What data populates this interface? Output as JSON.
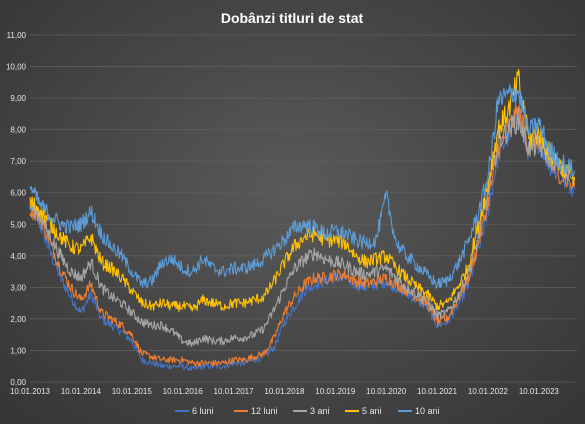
{
  "chart_data": {
    "type": "line",
    "title": "Dobânzi titluri de stat",
    "xlabel": "",
    "ylabel": "",
    "ylim": [
      0,
      11
    ],
    "yticks": [
      "0,00",
      "1,00",
      "2,00",
      "3,00",
      "4,00",
      "5,00",
      "6,00",
      "7,00",
      "8,00",
      "9,00",
      "10,00",
      "11,00"
    ],
    "xticks": [
      "10.01.2013",
      "10.01.2014",
      "10.01.2015",
      "10.01.2016",
      "10.01.2017",
      "10.01.2018",
      "10.01.2019",
      "10.01.2020",
      "10.01.2021",
      "10.01.2022",
      "10.01.2023"
    ],
    "xlim": [
      2013.0,
      2023.75
    ],
    "grid": true,
    "legend": "bottom",
    "colors": {
      "background": "#404040",
      "grid": "#5e5e5e",
      "text": "#e6e6e6"
    },
    "series": [
      {
        "name": "6 luni",
        "color": "#4472c4",
        "x": [
          2013.0,
          2013.2,
          2013.4,
          2013.6,
          2013.8,
          2014.0,
          2014.2,
          2014.4,
          2014.6,
          2014.8,
          2015.0,
          2015.2,
          2015.4,
          2015.6,
          2015.8,
          2016.0,
          2016.2,
          2016.4,
          2016.6,
          2016.8,
          2017.0,
          2017.2,
          2017.4,
          2017.6,
          2017.8,
          2018.0,
          2018.2,
          2018.4,
          2018.6,
          2018.8,
          2019.0,
          2019.2,
          2019.4,
          2019.6,
          2019.8,
          2020.0,
          2020.2,
          2020.4,
          2020.6,
          2020.8,
          2021.0,
          2021.2,
          2021.4,
          2021.6,
          2021.8,
          2022.0,
          2022.2,
          2022.4,
          2022.6,
          2022.8,
          2023.0,
          2023.2,
          2023.4,
          2023.7
        ],
        "values": [
          5.6,
          5.0,
          4.1,
          3.3,
          2.7,
          2.2,
          2.8,
          2.0,
          1.8,
          1.6,
          1.3,
          0.7,
          0.6,
          0.5,
          0.5,
          0.5,
          0.4,
          0.5,
          0.5,
          0.5,
          0.6,
          0.6,
          0.7,
          0.8,
          1.1,
          1.9,
          2.4,
          2.9,
          3.1,
          3.2,
          3.3,
          3.3,
          3.1,
          3.0,
          3.1,
          3.2,
          3.0,
          2.8,
          2.6,
          2.4,
          1.8,
          1.9,
          2.4,
          3.0,
          4.1,
          5.4,
          7.2,
          7.8,
          8.4,
          7.3,
          7.6,
          6.9,
          6.5,
          6.1
        ]
      },
      {
        "name": "12 luni",
        "color": "#ed7d31",
        "x": [
          2013.0,
          2013.2,
          2013.4,
          2013.6,
          2013.8,
          2014.0,
          2014.2,
          2014.4,
          2014.6,
          2014.8,
          2015.0,
          2015.2,
          2015.4,
          2015.6,
          2015.8,
          2016.0,
          2016.2,
          2016.4,
          2016.6,
          2016.8,
          2017.0,
          2017.2,
          2017.4,
          2017.6,
          2017.8,
          2018.0,
          2018.2,
          2018.4,
          2018.6,
          2018.8,
          2019.0,
          2019.2,
          2019.4,
          2019.6,
          2019.8,
          2020.0,
          2020.2,
          2020.4,
          2020.6,
          2020.8,
          2021.0,
          2021.2,
          2021.4,
          2021.6,
          2021.8,
          2022.0,
          2022.2,
          2022.4,
          2022.6,
          2022.8,
          2023.0,
          2023.2,
          2023.4,
          2023.7
        ],
        "values": [
          5.5,
          5.2,
          4.4,
          3.6,
          3.0,
          2.6,
          3.1,
          2.2,
          2.0,
          1.8,
          1.5,
          0.9,
          0.8,
          0.7,
          0.7,
          0.7,
          0.6,
          0.6,
          0.6,
          0.6,
          0.7,
          0.7,
          0.8,
          0.9,
          1.4,
          2.2,
          2.7,
          3.1,
          3.3,
          3.3,
          3.4,
          3.4,
          3.2,
          3.1,
          3.2,
          3.3,
          3.1,
          2.9,
          2.7,
          2.5,
          1.9,
          2.0,
          2.6,
          3.2,
          4.3,
          5.7,
          7.4,
          8.0,
          8.6,
          7.5,
          7.7,
          7.0,
          6.6,
          6.2
        ]
      },
      {
        "name": "3 ani",
        "color": "#a5a5a5",
        "x": [
          2013.0,
          2013.2,
          2013.4,
          2013.6,
          2013.8,
          2014.0,
          2014.2,
          2014.4,
          2014.6,
          2014.8,
          2015.0,
          2015.2,
          2015.4,
          2015.6,
          2015.8,
          2016.0,
          2016.2,
          2016.4,
          2016.6,
          2016.8,
          2017.0,
          2017.2,
          2017.4,
          2017.6,
          2017.8,
          2018.0,
          2018.2,
          2018.4,
          2018.6,
          2018.8,
          2019.0,
          2019.2,
          2019.4,
          2019.6,
          2019.8,
          2020.0,
          2020.2,
          2020.4,
          2020.6,
          2020.8,
          2021.0,
          2021.2,
          2021.4,
          2021.6,
          2021.8,
          2022.0,
          2022.2,
          2022.4,
          2022.6,
          2022.8,
          2023.0,
          2023.2,
          2023.4,
          2023.7
        ],
        "values": [
          5.6,
          5.3,
          4.6,
          4.0,
          3.5,
          3.3,
          3.8,
          3.0,
          2.7,
          2.5,
          2.2,
          1.9,
          1.8,
          1.8,
          1.6,
          1.3,
          1.2,
          1.4,
          1.3,
          1.3,
          1.4,
          1.4,
          1.5,
          1.7,
          2.3,
          3.0,
          3.6,
          3.9,
          4.1,
          3.9,
          3.8,
          3.7,
          3.5,
          3.4,
          3.5,
          3.6,
          3.3,
          3.0,
          2.8,
          2.6,
          2.1,
          2.2,
          2.7,
          3.4,
          4.5,
          6.0,
          7.6,
          8.0,
          8.3,
          7.4,
          7.5,
          7.1,
          6.8,
          6.4
        ]
      },
      {
        "name": "5 ani",
        "color": "#ffc000",
        "x": [
          2013.0,
          2013.2,
          2013.4,
          2013.6,
          2013.8,
          2014.0,
          2014.2,
          2014.4,
          2014.6,
          2014.8,
          2015.0,
          2015.2,
          2015.4,
          2015.6,
          2015.8,
          2016.0,
          2016.2,
          2016.4,
          2016.6,
          2016.8,
          2017.0,
          2017.2,
          2017.4,
          2017.6,
          2017.8,
          2018.0,
          2018.2,
          2018.4,
          2018.6,
          2018.8,
          2019.0,
          2019.2,
          2019.4,
          2019.6,
          2019.8,
          2020.0,
          2020.2,
          2020.4,
          2020.6,
          2020.8,
          2021.0,
          2021.2,
          2021.4,
          2021.6,
          2021.8,
          2022.0,
          2022.2,
          2022.4,
          2022.6,
          2022.8,
          2023.0,
          2023.2,
          2023.4,
          2023.7
        ],
        "values": [
          5.7,
          5.5,
          5.0,
          4.6,
          4.3,
          4.2,
          4.6,
          3.8,
          3.6,
          3.3,
          2.9,
          2.5,
          2.4,
          2.5,
          2.4,
          2.4,
          2.3,
          2.6,
          2.5,
          2.4,
          2.5,
          2.5,
          2.6,
          2.7,
          3.2,
          3.8,
          4.3,
          4.6,
          4.7,
          4.5,
          4.5,
          4.4,
          4.0,
          3.8,
          3.9,
          4.0,
          3.6,
          3.3,
          3.0,
          2.8,
          2.4,
          2.5,
          3.0,
          3.6,
          4.9,
          6.3,
          8.0,
          8.6,
          9.6,
          7.7,
          7.9,
          7.3,
          6.9,
          6.5
        ]
      },
      {
        "name": "10 ani",
        "color": "#5b9bd5",
        "x": [
          2013.0,
          2013.2,
          2013.4,
          2013.6,
          2013.8,
          2014.0,
          2014.2,
          2014.4,
          2014.6,
          2014.8,
          2015.0,
          2015.2,
          2015.4,
          2015.6,
          2015.8,
          2016.0,
          2016.2,
          2016.4,
          2016.6,
          2016.8,
          2017.0,
          2017.2,
          2017.4,
          2017.6,
          2017.8,
          2018.0,
          2018.2,
          2018.4,
          2018.6,
          2018.8,
          2019.0,
          2019.2,
          2019.4,
          2019.6,
          2019.8,
          2020.0,
          2020.2,
          2020.4,
          2020.6,
          2020.8,
          2021.0,
          2021.2,
          2021.4,
          2021.6,
          2021.8,
          2022.0,
          2022.2,
          2022.4,
          2022.6,
          2022.8,
          2023.0,
          2023.2,
          2023.4,
          2023.7
        ],
        "values": [
          6.2,
          5.6,
          5.3,
          5.0,
          4.9,
          5.0,
          5.4,
          4.7,
          4.3,
          4.0,
          3.5,
          3.1,
          3.2,
          3.8,
          3.9,
          3.6,
          3.5,
          3.9,
          3.6,
          3.5,
          3.6,
          3.6,
          3.7,
          3.9,
          4.2,
          4.5,
          4.9,
          5.0,
          4.9,
          4.7,
          4.8,
          4.7,
          4.5,
          4.4,
          4.5,
          5.9,
          4.4,
          4.0,
          3.7,
          3.4,
          3.1,
          3.2,
          3.7,
          4.4,
          5.3,
          6.5,
          8.9,
          9.1,
          9.2,
          7.9,
          8.2,
          7.4,
          7.0,
          6.7
        ]
      }
    ]
  }
}
